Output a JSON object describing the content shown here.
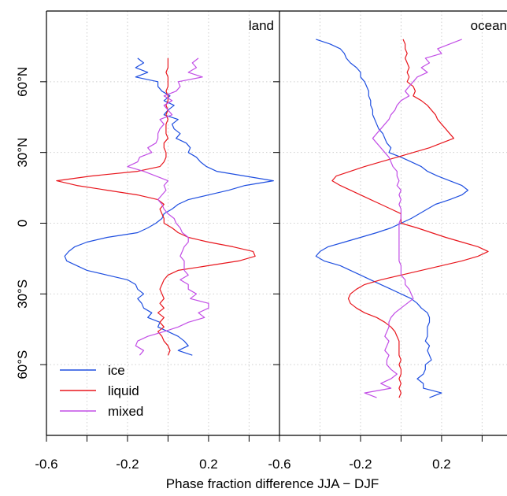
{
  "chart_data": {
    "type": "line",
    "xlabel": "Phase fraction difference JJA − DJF",
    "ylabel": "",
    "xlim": [
      -0.6,
      0.55
    ],
    "ylim": [
      -90,
      90
    ],
    "grid": true,
    "legend_position": "bottom-left",
    "x_ticks": [
      {
        "value": -0.6,
        "label": "-0.6"
      },
      {
        "value": -0.4,
        "label": ""
      },
      {
        "value": -0.2,
        "label": "-0.2"
      },
      {
        "value": 0.0,
        "label": ""
      },
      {
        "value": 0.2,
        "label": "0.2"
      },
      {
        "value": 0.4,
        "label": ""
      }
    ],
    "y_ticks": [
      {
        "value": 60,
        "label": "60°N"
      },
      {
        "value": 30,
        "label": "30°N"
      },
      {
        "value": 0,
        "label": "0"
      },
      {
        "value": -30,
        "label": "30°S"
      },
      {
        "value": -60,
        "label": "60°S"
      }
    ],
    "colors": {
      "ice": "#1f4fe0",
      "liquid": "#e8161d",
      "mixed": "#c24ee6",
      "grid": "#cfcfcf"
    },
    "legend": [
      {
        "key": "ice",
        "label": "ice"
      },
      {
        "key": "liquid",
        "label": "liquid"
      },
      {
        "key": "mixed",
        "label": "mixed"
      }
    ],
    "panels": [
      {
        "label": "land",
        "series": [
          {
            "name": "ice",
            "y": [
              70,
              68,
              66,
              64,
              62,
              60,
              58,
              56,
              54,
              52,
              50,
              48,
              46,
              44,
              42,
              40,
              38,
              36,
              34,
              32,
              30,
              28,
              26,
              24,
              22,
              20,
              18,
              16,
              14,
              12,
              10,
              8,
              6,
              4,
              2,
              0,
              -2,
              -4,
              -6,
              -8,
              -10,
              -12,
              -14,
              -16,
              -18,
              -20,
              -22,
              -24,
              -26,
              -28,
              -30,
              -32,
              -34,
              -36,
              -38,
              -40,
              -42,
              -44,
              -46,
              -48,
              -50,
              -52,
              -54,
              -56
            ],
            "x": [
              -0.15,
              -0.12,
              -0.16,
              -0.1,
              -0.16,
              -0.05,
              -0.05,
              -0.03,
              0.01,
              -0.02,
              0.03,
              0.0,
              -0.02,
              0.05,
              0.02,
              0.03,
              0.06,
              0.04,
              0.09,
              0.11,
              0.1,
              0.14,
              0.16,
              0.19,
              0.24,
              0.38,
              0.52,
              0.38,
              0.3,
              0.2,
              0.1,
              0.05,
              0.02,
              -0.02,
              -0.03,
              -0.06,
              -0.1,
              -0.15,
              -0.3,
              -0.4,
              -0.46,
              -0.49,
              -0.51,
              -0.5,
              -0.45,
              -0.4,
              -0.3,
              -0.2,
              -0.16,
              -0.15,
              -0.12,
              -0.15,
              -0.13,
              -0.12,
              -0.08,
              -0.1,
              -0.04,
              -0.05,
              0.0,
              0.05,
              0.08,
              0.1,
              0.05,
              0.12
            ]
          },
          {
            "name": "liquid",
            "y": [
              70,
              68,
              66,
              64,
              62,
              60,
              58,
              56,
              54,
              52,
              50,
              48,
              46,
              44,
              42,
              40,
              38,
              36,
              34,
              32,
              30,
              28,
              26,
              24,
              22,
              20,
              18,
              16,
              14,
              12,
              10,
              8,
              6,
              4,
              2,
              0,
              -2,
              -4,
              -6,
              -8,
              -10,
              -12,
              -14,
              -16,
              -18,
              -20,
              -22,
              -24,
              -26,
              -28,
              -30,
              -32,
              -34,
              -36,
              -38,
              -40,
              -42,
              -44,
              -46,
              -48,
              -50,
              -52,
              -54,
              -56
            ],
            "x": [
              0.0,
              0.0,
              0.0,
              -0.01,
              0.0,
              0.0,
              0.0,
              -0.01,
              0.0,
              0.0,
              -0.01,
              0.0,
              -0.01,
              0.0,
              -0.01,
              -0.01,
              -0.01,
              0.0,
              -0.02,
              -0.02,
              -0.01,
              -0.01,
              -0.02,
              -0.04,
              -0.15,
              -0.38,
              -0.55,
              -0.45,
              -0.3,
              -0.15,
              -0.05,
              -0.02,
              -0.04,
              -0.03,
              -0.02,
              -0.02,
              0.02,
              0.05,
              0.1,
              0.2,
              0.32,
              0.42,
              0.43,
              0.35,
              0.2,
              0.05,
              0.0,
              -0.02,
              -0.03,
              -0.04,
              -0.03,
              -0.02,
              -0.04,
              -0.02,
              -0.05,
              -0.02,
              -0.04,
              -0.02,
              -0.05,
              -0.03,
              -0.02,
              0.0,
              0.01,
              0.0
            ]
          },
          {
            "name": "mixed",
            "y": [
              70,
              68,
              66,
              64,
              62,
              60,
              58,
              56,
              54,
              52,
              50,
              48,
              46,
              44,
              42,
              40,
              38,
              36,
              34,
              32,
              30,
              28,
              26,
              24,
              22,
              20,
              18,
              16,
              14,
              12,
              10,
              8,
              6,
              4,
              2,
              0,
              -2,
              -4,
              -6,
              -8,
              -10,
              -12,
              -14,
              -16,
              -18,
              -20,
              -22,
              -24,
              -26,
              -28,
              -30,
              -32,
              -34,
              -36,
              -38,
              -40,
              -42,
              -44,
              -46,
              -48,
              -50,
              -52,
              -54,
              -56
            ],
            "x": [
              0.15,
              0.12,
              0.14,
              0.1,
              0.17,
              0.05,
              0.06,
              0.04,
              -0.02,
              0.02,
              -0.02,
              0.0,
              0.02,
              -0.04,
              -0.02,
              -0.04,
              -0.05,
              -0.05,
              -0.06,
              -0.1,
              -0.08,
              -0.14,
              -0.15,
              -0.2,
              -0.12,
              -0.06,
              0.0,
              -0.02,
              -0.01,
              -0.03,
              -0.05,
              -0.03,
              -0.02,
              0.0,
              0.03,
              0.04,
              0.06,
              0.07,
              0.1,
              0.1,
              0.08,
              0.07,
              0.06,
              0.08,
              0.08,
              0.08,
              0.1,
              0.06,
              0.1,
              0.1,
              0.14,
              0.11,
              0.2,
              0.2,
              0.15,
              0.18,
              0.1,
              0.05,
              -0.02,
              -0.1,
              -0.15,
              -0.16,
              -0.12,
              -0.14
            ]
          }
        ]
      },
      {
        "label": "ocean",
        "series": [
          {
            "name": "ice",
            "y": [
              78,
              76,
              74,
              72,
              70,
              68,
              66,
              64,
              62,
              60,
              58,
              56,
              54,
              52,
              50,
              48,
              46,
              44,
              42,
              40,
              38,
              36,
              34,
              32,
              30,
              28,
              26,
              24,
              22,
              20,
              18,
              16,
              14,
              12,
              10,
              8,
              6,
              4,
              2,
              0,
              -2,
              -4,
              -6,
              -8,
              -10,
              -12,
              -14,
              -16,
              -18,
              -20,
              -22,
              -24,
              -26,
              -28,
              -30,
              -32,
              -34,
              -36,
              -38,
              -40,
              -42,
              -44,
              -46,
              -48,
              -50,
              -52,
              -54,
              -56,
              -58,
              -60,
              -62,
              -64,
              -66,
              -68,
              -70,
              -72,
              -74
            ],
            "x": [
              -0.42,
              -0.35,
              -0.3,
              -0.28,
              -0.27,
              -0.25,
              -0.22,
              -0.2,
              -0.2,
              -0.18,
              -0.17,
              -0.16,
              -0.16,
              -0.15,
              -0.15,
              -0.14,
              -0.14,
              -0.13,
              -0.12,
              -0.11,
              -0.09,
              -0.08,
              -0.07,
              -0.05,
              -0.06,
              0.0,
              0.05,
              0.1,
              0.13,
              0.18,
              0.24,
              0.3,
              0.33,
              0.3,
              0.24,
              0.17,
              0.13,
              0.09,
              0.05,
              0.0,
              -0.05,
              -0.12,
              -0.2,
              -0.28,
              -0.36,
              -0.4,
              -0.42,
              -0.38,
              -0.3,
              -0.25,
              -0.2,
              -0.15,
              -0.1,
              -0.05,
              0.0,
              0.05,
              0.08,
              0.1,
              0.13,
              0.14,
              0.14,
              0.13,
              0.13,
              0.13,
              0.12,
              0.14,
              0.13,
              0.14,
              0.15,
              0.12,
              0.12,
              0.11,
              0.08,
              0.11,
              0.11,
              0.2,
              0.14
            ]
          },
          {
            "name": "liquid",
            "y": [
              78,
              76,
              74,
              72,
              70,
              68,
              66,
              64,
              62,
              60,
              58,
              56,
              54,
              52,
              50,
              48,
              46,
              44,
              42,
              40,
              38,
              36,
              34,
              32,
              30,
              28,
              26,
              24,
              22,
              20,
              18,
              16,
              14,
              12,
              10,
              8,
              6,
              4,
              2,
              0,
              -2,
              -4,
              -6,
              -8,
              -10,
              -12,
              -14,
              -16,
              -18,
              -20,
              -22,
              -24,
              -26,
              -28,
              -30,
              -32,
              -34,
              -36,
              -38,
              -40,
              -42,
              -44,
              -46,
              -48,
              -50,
              -52,
              -54,
              -56,
              -58,
              -60,
              -62,
              -64,
              -66,
              -68,
              -70,
              -72,
              -74
            ],
            "x": [
              0.01,
              0.02,
              0.02,
              0.03,
              0.02,
              0.03,
              0.04,
              0.03,
              0.04,
              0.03,
              0.06,
              0.07,
              0.06,
              0.1,
              0.13,
              0.15,
              0.17,
              0.18,
              0.2,
              0.22,
              0.24,
              0.26,
              0.2,
              0.14,
              0.06,
              -0.02,
              -0.1,
              -0.18,
              -0.25,
              -0.32,
              -0.34,
              -0.3,
              -0.25,
              -0.2,
              -0.15,
              -0.1,
              -0.05,
              0.0,
              0.0,
              0.0,
              0.08,
              0.15,
              0.22,
              0.3,
              0.38,
              0.43,
              0.38,
              0.3,
              0.2,
              0.1,
              0.0,
              -0.1,
              -0.18,
              -0.22,
              -0.25,
              -0.26,
              -0.25,
              -0.22,
              -0.18,
              -0.12,
              -0.08,
              -0.05,
              -0.03,
              -0.02,
              -0.01,
              -0.01,
              -0.01,
              -0.01,
              0.0,
              -0.01,
              0.0,
              0.0,
              -0.01,
              0.0,
              -0.01,
              0.0,
              -0.01
            ]
          },
          {
            "name": "mixed",
            "y": [
              78,
              76,
              74,
              72,
              70,
              68,
              66,
              64,
              62,
              60,
              58,
              56,
              54,
              52,
              50,
              48,
              46,
              44,
              42,
              40,
              38,
              36,
              34,
              32,
              30,
              28,
              26,
              24,
              22,
              20,
              18,
              16,
              14,
              12,
              10,
              8,
              6,
              4,
              2,
              0,
              -2,
              -4,
              -6,
              -8,
              -10,
              -12,
              -14,
              -16,
              -18,
              -20,
              -22,
              -24,
              -26,
              -28,
              -30,
              -32,
              -34,
              -36,
              -38,
              -40,
              -42,
              -44,
              -46,
              -48,
              -50,
              -52,
              -54,
              -56,
              -58,
              -60,
              -62,
              -64,
              -66,
              -68,
              -70,
              -72,
              -74
            ],
            "x": [
              0.3,
              0.24,
              0.18,
              0.2,
              0.12,
              0.14,
              0.1,
              0.13,
              0.08,
              0.06,
              0.04,
              0.02,
              0.04,
              0.0,
              -0.02,
              -0.03,
              -0.05,
              -0.06,
              -0.08,
              -0.1,
              -0.12,
              -0.14,
              -0.12,
              -0.1,
              -0.08,
              -0.06,
              -0.05,
              -0.04,
              -0.02,
              -0.02,
              -0.01,
              -0.02,
              0.0,
              -0.01,
              0.0,
              -0.01,
              0.0,
              0.0,
              0.0,
              -0.01,
              -0.01,
              -0.01,
              -0.01,
              -0.01,
              -0.01,
              -0.01,
              -0.01,
              -0.01,
              0.0,
              0.0,
              0.0,
              0.02,
              0.02,
              0.04,
              0.05,
              0.06,
              0.03,
              0.0,
              -0.03,
              -0.05,
              -0.06,
              -0.06,
              -0.07,
              -0.08,
              -0.06,
              -0.07,
              -0.08,
              -0.06,
              -0.07,
              -0.07,
              -0.05,
              -0.02,
              -0.05,
              -0.1,
              -0.05,
              -0.18,
              -0.12
            ]
          }
        ]
      }
    ]
  }
}
